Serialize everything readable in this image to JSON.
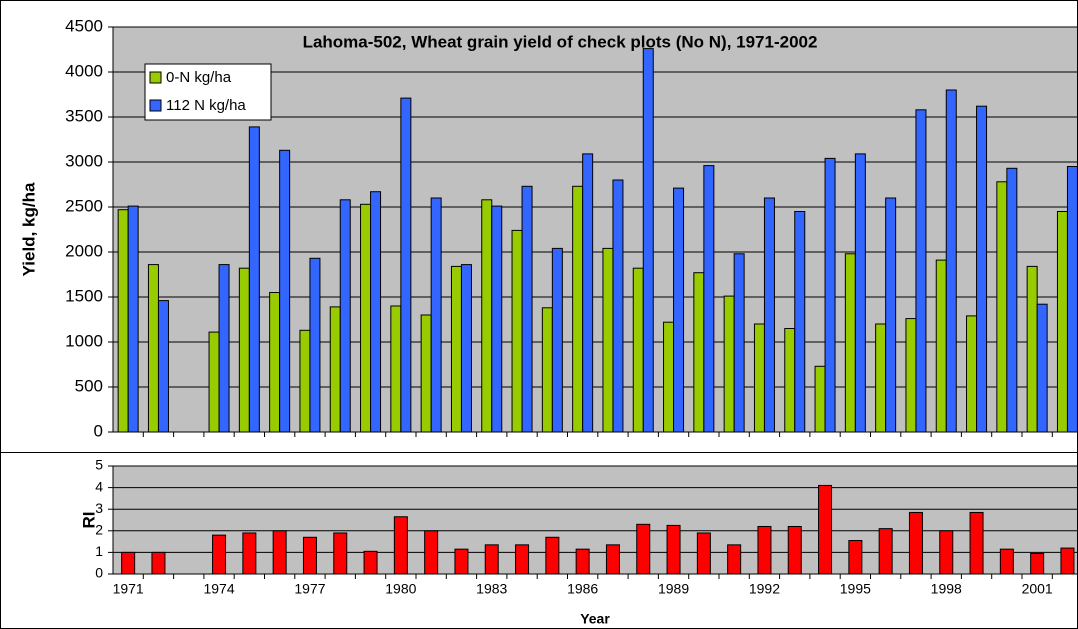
{
  "chart_data": [
    {
      "type": "bar",
      "title": "Lahoma-502, Wheat grain yield of check plots (No N), 1971-2002",
      "y_label": "Yield, kg/ha",
      "categories": [
        "1971",
        null,
        null,
        "1974",
        null,
        null,
        "1977",
        null,
        null,
        "1980",
        null,
        null,
        "1983",
        null,
        null,
        "1986",
        null,
        null,
        "1989",
        null,
        null,
        "1992",
        null,
        null,
        "1995",
        null,
        null,
        "1998",
        null,
        null,
        "2001",
        null
      ],
      "series": [
        {
          "name": "0-N kg/ha",
          "color": "#99cc00",
          "values": [
            2470,
            1860,
            null,
            1110,
            1820,
            1550,
            1130,
            1390,
            2530,
            1400,
            1300,
            1840,
            2580,
            2240,
            1380,
            2730,
            2040,
            1820,
            1220,
            1770,
            1510,
            1200,
            1150,
            730,
            1980,
            1200,
            1260,
            1910,
            1290,
            2780,
            1840,
            2450
          ]
        },
        {
          "name": "112 N kg/ha",
          "color": "#3366ff",
          "values": [
            2510,
            1460,
            null,
            1860,
            3390,
            3130,
            1930,
            2580,
            2670,
            3710,
            2600,
            1860,
            2510,
            2730,
            2040,
            3090,
            2800,
            4260,
            2710,
            2960,
            1980,
            2600,
            2450,
            3040,
            3090,
            2600,
            3580,
            3800,
            3620,
            2930,
            1420,
            2950
          ]
        }
      ],
      "ylim": [
        0,
        4500
      ],
      "yticks": [
        0,
        500,
        1000,
        1500,
        2000,
        2500,
        3000,
        3500,
        4000,
        4500
      ],
      "grid": true,
      "legend": "top-left"
    },
    {
      "type": "bar",
      "y_label": "RI",
      "x_label": "Year",
      "categories": [
        "1971",
        null,
        null,
        "1974",
        null,
        null,
        "1977",
        null,
        null,
        "1980",
        null,
        null,
        "1983",
        null,
        null,
        "1986",
        null,
        null,
        "1989",
        null,
        null,
        "1992",
        null,
        null,
        "1995",
        null,
        null,
        "1998",
        null,
        null,
        "2001",
        null
      ],
      "series": [
        {
          "color": "#ff0000",
          "values": [
            1.0,
            1.0,
            null,
            1.8,
            1.9,
            2.0,
            1.7,
            1.9,
            1.05,
            2.65,
            2.0,
            1.15,
            1.35,
            1.35,
            1.7,
            1.15,
            1.35,
            2.3,
            2.25,
            1.9,
            1.35,
            2.2,
            2.2,
            4.1,
            1.55,
            2.1,
            2.85,
            2.0,
            2.85,
            1.15,
            0.95,
            1.2
          ]
        }
      ],
      "ylim": [
        0,
        5
      ],
      "yticks": [
        0,
        1,
        2,
        3,
        4,
        5
      ],
      "grid": true
    }
  ]
}
